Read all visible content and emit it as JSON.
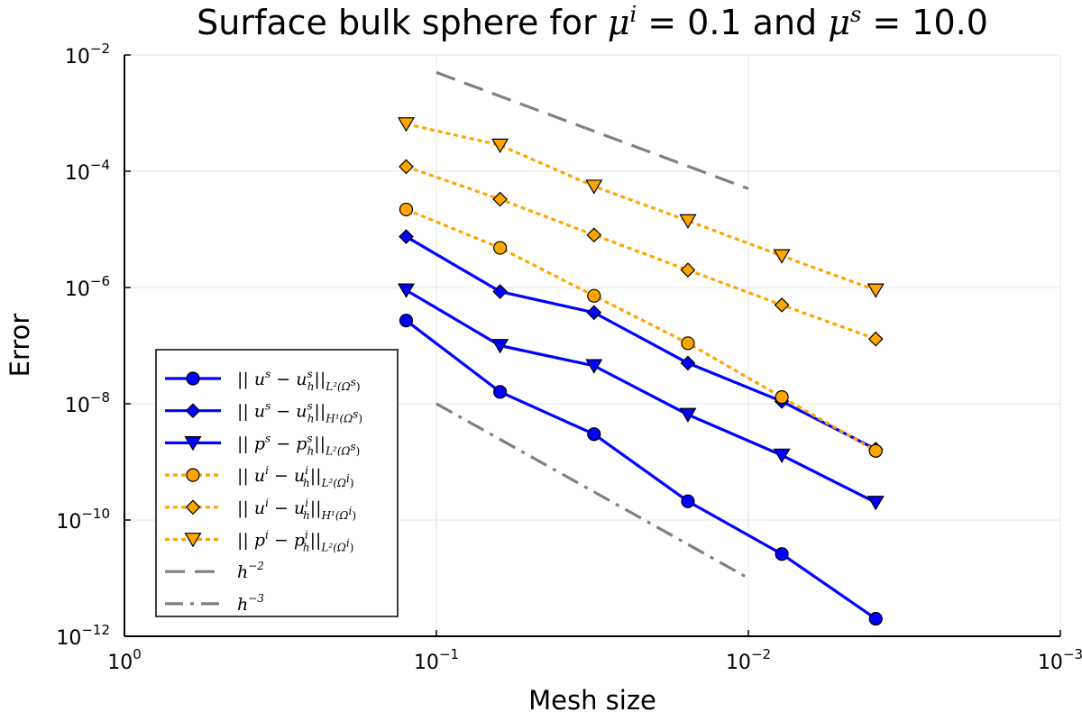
{
  "chart_data": {
    "type": "line",
    "title": {
      "prefix": "Surface bulk sphere for ",
      "mu_i_base": "μ",
      "mu_i_sup": "i",
      "mu_i_value": " = 0.1 and ",
      "mu_s_base": "μ",
      "mu_s_sup": "s",
      "mu_s_value": " = 10.0"
    },
    "xlabel": "Mesh size",
    "ylabel": "Error",
    "x_scale": "log",
    "y_scale": "log",
    "x_reversed": true,
    "xlim": [
      1,
      0.001
    ],
    "ylim": [
      1e-12,
      0.01
    ],
    "grid": true,
    "legend_position": "bottom-left",
    "x_ticks": [
      {
        "value": 1,
        "base": "10",
        "exp": "0"
      },
      {
        "value": 0.1,
        "base": "10",
        "exp": "−1"
      },
      {
        "value": 0.01,
        "base": "10",
        "exp": "−2"
      },
      {
        "value": 0.001,
        "base": "10",
        "exp": "−3"
      }
    ],
    "y_ticks": [
      {
        "value": 1e-12,
        "base": "10",
        "exp": "−12"
      },
      {
        "value": 1e-10,
        "base": "10",
        "exp": "−10"
      },
      {
        "value": 1e-08,
        "base": "10",
        "exp": "−8"
      },
      {
        "value": 1e-06,
        "base": "10",
        "exp": "−6"
      },
      {
        "value": 0.0001,
        "base": "10",
        "exp": "−4"
      },
      {
        "value": 0.01,
        "base": "10",
        "exp": "−2"
      }
    ],
    "series": [
      {
        "name": "|| u^s − u_h^s ||_{L²(Ω^s)}",
        "label": {
          "open": "|| ",
          "a": "u",
          "a_sup": "s",
          "mid": " − ",
          "b": "u",
          "b_sup": "s",
          "b_sub": "h",
          "close": "||",
          "norm_sub": "L²(Ω",
          "norm_sup": "s",
          "norm_end": ")"
        },
        "color": "#0000ff",
        "dash": "solid",
        "marker": "circle",
        "x": [
          0.125,
          0.0625,
          0.03125,
          0.015625,
          0.0078125,
          0.00390625
        ],
        "y": [
          2.7e-07,
          1.6e-08,
          3e-09,
          2.1e-10,
          2.6e-11,
          2e-12
        ]
      },
      {
        "name": "|| u^s − u_h^s ||_{H¹(Ω^s)}",
        "label": {
          "open": "|| ",
          "a": "u",
          "a_sup": "s",
          "mid": " − ",
          "b": "u",
          "b_sup": "s",
          "b_sub": "h",
          "close": "||",
          "norm_sub": "H¹(Ω",
          "norm_sup": "s",
          "norm_end": ")"
        },
        "color": "#0000ff",
        "dash": "solid",
        "marker": "diamond",
        "x": [
          0.125,
          0.0625,
          0.03125,
          0.015625,
          0.0078125,
          0.00390625
        ],
        "y": [
          7.5e-06,
          8.5e-07,
          3.7e-07,
          5e-08,
          1.1e-08,
          1.65e-09
        ]
      },
      {
        "name": "|| p^s − p_h^s ||_{L²(Ω^s)}",
        "label": {
          "open": "|| ",
          "a": "p",
          "a_sup": "s",
          "mid": " − ",
          "b": "p",
          "b_sup": "s",
          "b_sub": "h",
          "close": "||",
          "norm_sub": "L²(Ω",
          "norm_sup": "s",
          "norm_end": ")"
        },
        "color": "#0000ff",
        "dash": "solid",
        "marker": "triangle-down",
        "x": [
          0.125,
          0.0625,
          0.03125,
          0.015625,
          0.0078125,
          0.00390625
        ],
        "y": [
          9e-07,
          1e-07,
          4.5e-08,
          6.5e-09,
          1.3e-09,
          2e-10
        ]
      },
      {
        "name": "|| u^i − u_h^i ||_{L²(Ω^i)}",
        "label": {
          "open": "|| ",
          "a": "u",
          "a_sup": "i",
          "mid": " − ",
          "b": "u",
          "b_sup": "i",
          "b_sub": "h",
          "close": "||",
          "norm_sub": "L²(Ω",
          "norm_sup": "i",
          "norm_end": ")"
        },
        "color": "#ffa500",
        "dash": "dot",
        "marker": "circle",
        "x": [
          0.125,
          0.0625,
          0.03125,
          0.015625,
          0.0078125,
          0.00390625
        ],
        "y": [
          2.2e-05,
          4.8e-06,
          7.2e-07,
          1.1e-07,
          1.3e-08,
          1.55e-09
        ]
      },
      {
        "name": "|| u^i − u_h^i ||_{H¹(Ω^i)}",
        "label": {
          "open": "|| ",
          "a": "u",
          "a_sup": "i",
          "mid": " − ",
          "b": "u",
          "b_sup": "i",
          "b_sub": "h",
          "close": "||",
          "norm_sub": "H¹(Ω",
          "norm_sup": "i",
          "norm_end": ")"
        },
        "color": "#ffa500",
        "dash": "dot",
        "marker": "diamond",
        "x": [
          0.125,
          0.0625,
          0.03125,
          0.015625,
          0.0078125,
          0.00390625
        ],
        "y": [
          0.00012,
          3.3e-05,
          8e-06,
          2e-06,
          5e-07,
          1.3e-07
        ]
      },
      {
        "name": "|| p^i − p_h^i ||_{L²(Ω^i)}",
        "label": {
          "open": "|| ",
          "a": "p",
          "a_sup": "i",
          "mid": " − ",
          "b": "p",
          "b_sup": "i",
          "b_sub": "h",
          "close": "||",
          "norm_sub": "L²(Ω",
          "norm_sup": "i",
          "norm_end": ")"
        },
        "color": "#ffa500",
        "dash": "dot",
        "marker": "triangle-down",
        "x": [
          0.125,
          0.0625,
          0.03125,
          0.015625,
          0.0078125,
          0.00390625
        ],
        "y": [
          0.00065,
          0.00028,
          5.5e-05,
          1.4e-05,
          3.5e-06,
          9e-07
        ]
      },
      {
        "name": "h^−2",
        "label": {
          "base": "h",
          "sup": "−2"
        },
        "color": "#808080",
        "dash": "dash",
        "marker": "none",
        "x": [
          0.1,
          0.01
        ],
        "y": [
          0.005,
          5e-05
        ]
      },
      {
        "name": "h^−3",
        "label": {
          "base": "h",
          "sup": "−3"
        },
        "color": "#808080",
        "dash": "dashdot",
        "marker": "none",
        "x": [
          0.1,
          0.01
        ],
        "y": [
          1e-08,
          1e-11
        ]
      }
    ]
  }
}
